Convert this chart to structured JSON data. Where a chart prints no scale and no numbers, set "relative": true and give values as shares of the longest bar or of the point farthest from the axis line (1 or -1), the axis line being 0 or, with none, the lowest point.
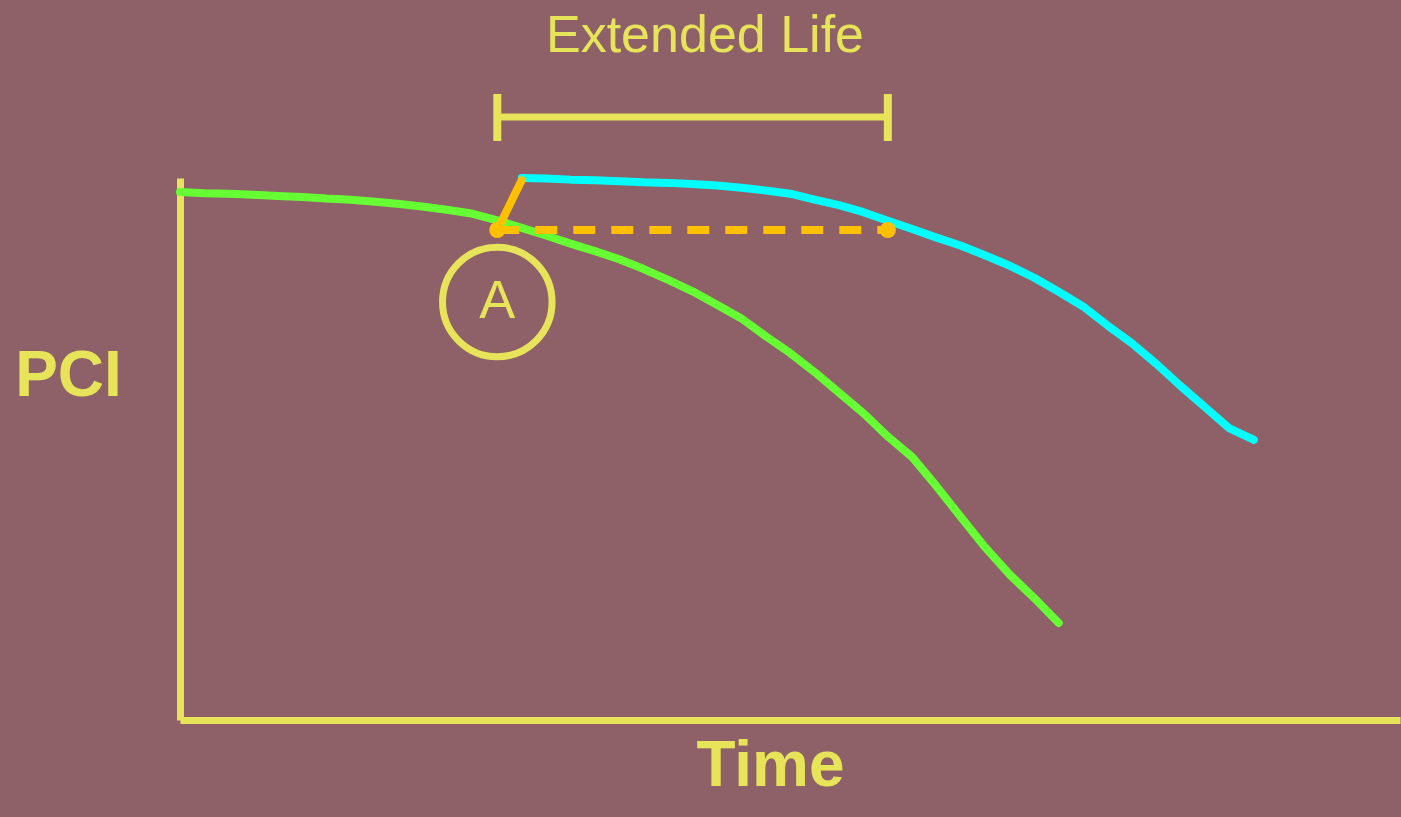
{
  "chart_data": {
    "type": "line",
    "relative": true,
    "xlabel": "Time",
    "ylabel": "PCI",
    "grid": false,
    "categories": [
      null,
      null,
      null,
      null,
      null,
      null,
      null,
      null,
      null,
      null,
      null,
      null,
      null,
      null,
      null,
      null,
      null,
      null,
      null,
      null,
      null,
      null,
      null,
      null,
      null,
      null,
      null,
      null,
      null,
      null,
      null,
      null,
      null,
      null,
      null,
      null,
      null,
      null,
      null,
      null,
      null,
      null,
      null,
      null,
      null
    ],
    "annotations": [
      "Extended Life",
      "A"
    ],
    "series": [
      {
        "color": "#66ff33",
        "values": [
          0.974,
          0.972,
          0.971,
          0.969,
          0.967,
          0.965,
          0.962,
          0.96,
          0.956,
          0.952,
          0.947,
          0.941,
          0.934,
          0.922,
          0.908,
          0.894,
          0.879,
          0.865,
          0.85,
          0.832,
          0.812,
          0.791,
          0.766,
          0.741,
          0.708,
          0.677,
          0.642,
          0.604,
          0.566,
          0.523,
          0.485,
          0.431,
          0.374,
          0.318,
          0.268,
          0.225,
          0.179,
          null,
          null,
          null,
          null,
          null,
          null,
          null,
          null
        ]
      },
      {
        "color": "#00ffff",
        "values": [
          null,
          null,
          null,
          null,
          null,
          null,
          null,
          null,
          null,
          null,
          null,
          null,
          null,
          null,
          1.0,
          0.999,
          0.997,
          0.996,
          0.994,
          0.992,
          0.991,
          0.989,
          0.986,
          0.982,
          0.977,
          0.971,
          0.96,
          0.95,
          0.937,
          0.921,
          0.906,
          0.89,
          0.875,
          0.857,
          0.838,
          0.816,
          0.79,
          0.763,
          0.728,
          0.695,
          0.657,
          0.616,
          0.577,
          0.538,
          0.517
        ]
      },
      {
        "color": "#ffc000",
        "values": [
          null,
          null,
          null,
          null,
          null,
          null,
          null,
          null,
          null,
          null,
          null,
          null,
          null,
          0.904,
          0.996,
          null,
          null,
          null,
          null,
          null,
          null,
          null,
          null,
          null,
          null,
          null,
          null,
          null,
          null,
          null,
          null,
          null,
          null,
          null,
          null,
          null,
          null,
          null,
          null,
          null,
          null,
          null,
          null,
          null,
          null
        ]
      },
      {
        "color": "#ffc000",
        "line_style": "dashed",
        "marker": "circle",
        "values": [
          null,
          null,
          null,
          null,
          null,
          null,
          null,
          null,
          null,
          null,
          null,
          null,
          null,
          0.904,
          null,
          null,
          null,
          null,
          null,
          null,
          null,
          null,
          null,
          null,
          null,
          null,
          null,
          null,
          null,
          0.904,
          null,
          null,
          null,
          null,
          null,
          null,
          null,
          null,
          null,
          null,
          null,
          null,
          null,
          null,
          null
        ]
      }
    ]
  }
}
